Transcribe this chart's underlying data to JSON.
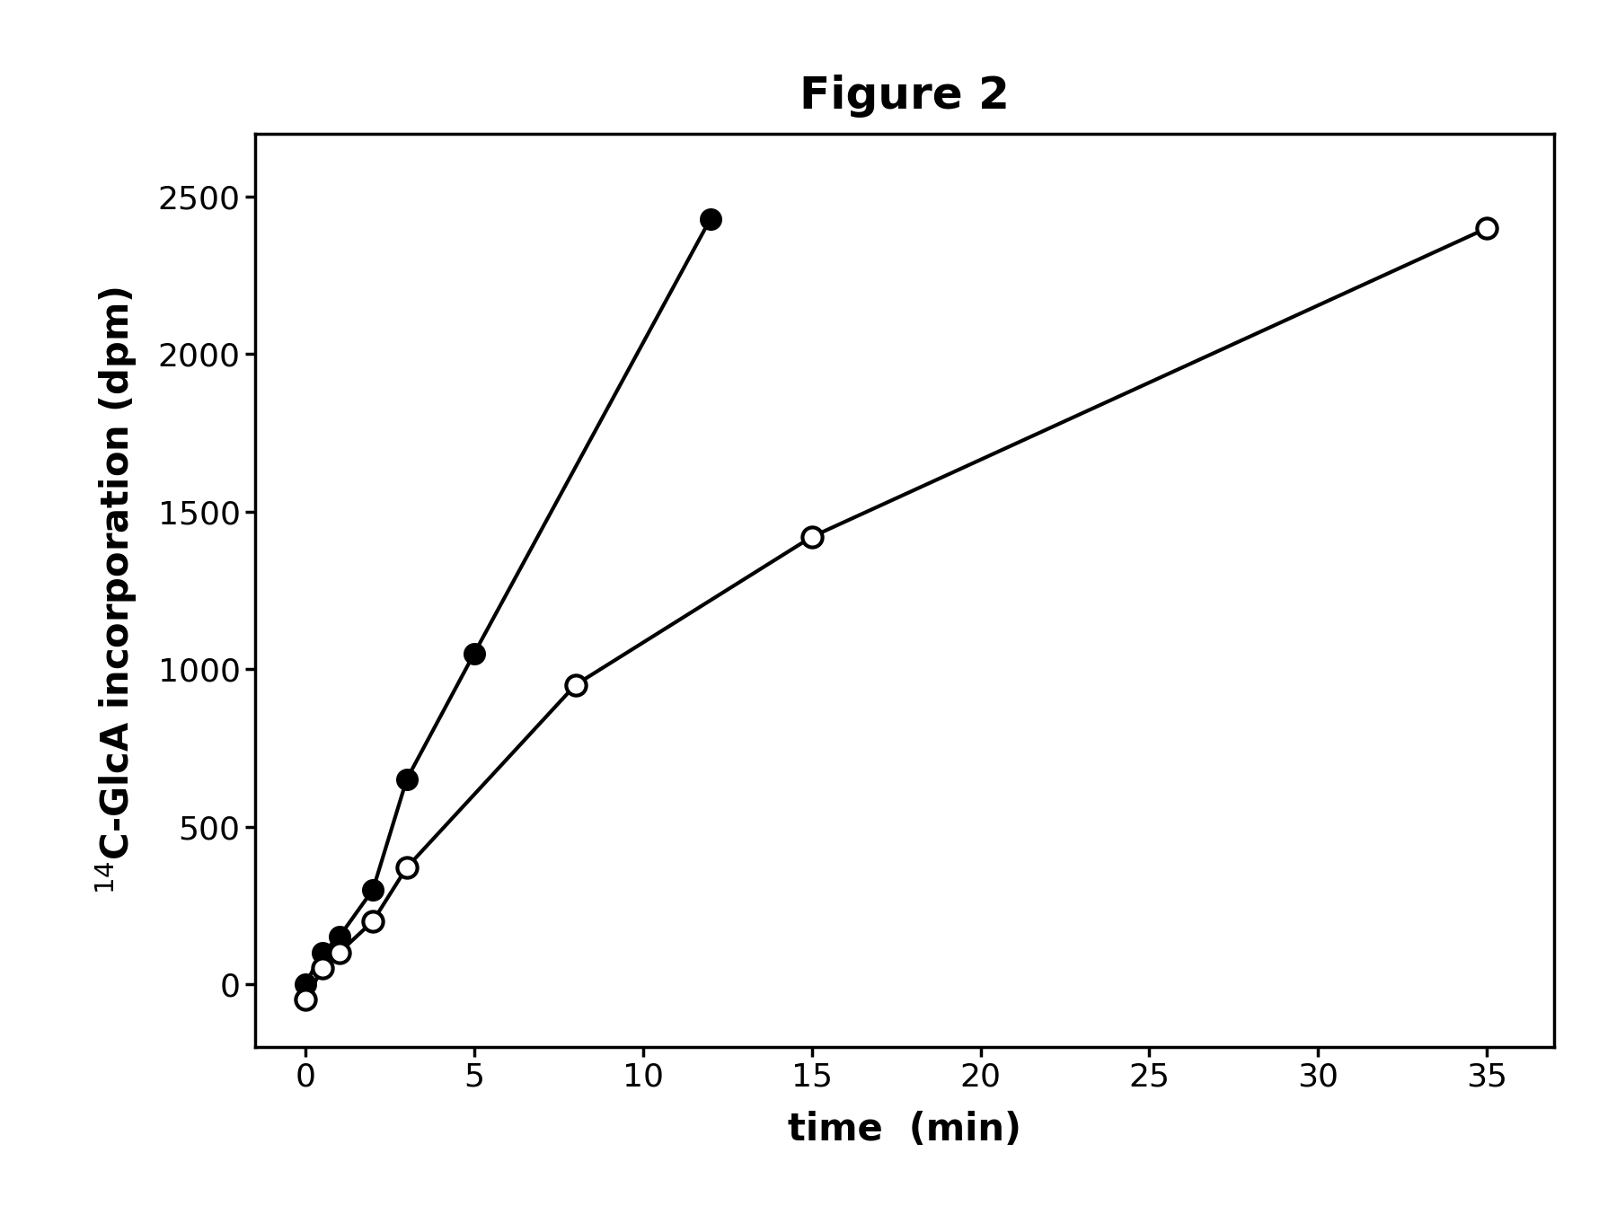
{
  "title": "Figure 2",
  "xlabel": "time  (min)",
  "ylabel": "$^{14}$C-GlcA incorporation (dpm)",
  "filled_x": [
    0,
    0.5,
    1,
    2,
    3,
    5,
    12
  ],
  "filled_y": [
    0,
    100,
    150,
    300,
    650,
    1050,
    2430
  ],
  "open_x": [
    0,
    0.5,
    1,
    2,
    3,
    8,
    15,
    35
  ],
  "open_y": [
    -50,
    50,
    100,
    200,
    370,
    950,
    1420,
    2400
  ],
  "xlim": [
    -1.5,
    37
  ],
  "ylim": [
    -200,
    2700
  ],
  "yticks": [
    0,
    500,
    1000,
    1500,
    2000,
    2500
  ],
  "xticks": [
    0,
    5,
    10,
    15,
    20,
    25,
    30,
    35
  ],
  "line_color": "#000000",
  "marker_size": 16,
  "line_width": 3.0,
  "title_fontsize": 36,
  "label_fontsize": 30,
  "tick_fontsize": 26,
  "background_color": "#ffffff"
}
